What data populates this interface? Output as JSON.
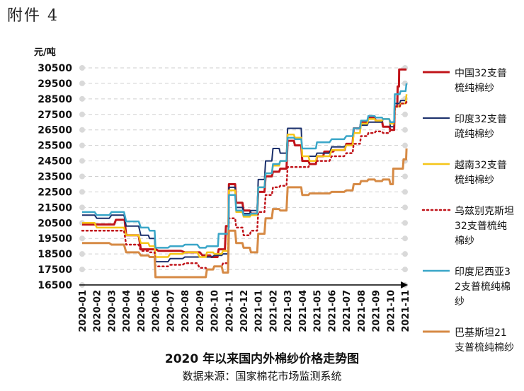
{
  "header_label": "附件 4",
  "chart_data": {
    "type": "line",
    "title": "2020 年以来国内外棉纱价格走势图",
    "source": "数据来源：国家棉花市场监测系统",
    "ylabel": "元/吨",
    "ylim": [
      16500,
      30500
    ],
    "yticks": [
      16500,
      17500,
      18500,
      19500,
      20500,
      21500,
      22500,
      23500,
      24500,
      25500,
      26500,
      27500,
      28500,
      29500,
      30500
    ],
    "grid": true,
    "legend": "right",
    "categories": [
      "2020-01",
      "2020-02",
      "2020-03",
      "2020-04",
      "2020-05",
      "2020-06",
      "2020-07",
      "2020-08",
      "2020-09",
      "2020-10",
      "2020-11",
      "2020-12",
      "2021-01",
      "2021-02",
      "2021-03",
      "2021-04",
      "2021-05",
      "2021-06",
      "2021-07",
      "2021-08",
      "2021-09",
      "2021-10",
      "2021-11"
    ],
    "series": [
      {
        "name": "中国32支普梳纯棉纱",
        "color": "#c0141a",
        "style": "solid",
        "width": 3,
        "points": [
          [
            0,
            20400
          ],
          [
            1.5,
            20400
          ],
          [
            2.3,
            20700
          ],
          [
            3,
            19700
          ],
          [
            4,
            18800
          ],
          [
            5.2,
            18700
          ],
          [
            7,
            18600
          ],
          [
            8.2,
            18400
          ],
          [
            8.8,
            18300
          ],
          [
            9.3,
            18800
          ],
          [
            9.8,
            20300
          ],
          [
            10,
            23000
          ],
          [
            10.5,
            21800
          ],
          [
            11,
            21300
          ],
          [
            11.5,
            21100
          ],
          [
            12,
            22500
          ],
          [
            12.5,
            23500
          ],
          [
            13,
            23800
          ],
          [
            13.5,
            24000
          ],
          [
            14,
            25800
          ],
          [
            14.5,
            25500
          ],
          [
            15,
            24500
          ],
          [
            15.5,
            24300
          ],
          [
            16,
            24800
          ],
          [
            16.5,
            25100
          ],
          [
            17.2,
            25200
          ],
          [
            18,
            25600
          ],
          [
            18.5,
            26600
          ],
          [
            19,
            27000
          ],
          [
            19.5,
            27300
          ],
          [
            20,
            27100
          ],
          [
            20.5,
            26700
          ],
          [
            21,
            26500
          ],
          [
            21.3,
            28000
          ],
          [
            21.5,
            29300
          ],
          [
            21.6,
            30400
          ],
          [
            22.1,
            30400
          ]
        ]
      },
      {
        "name": "印度32支普疏纯棉纱",
        "color": "#1a2f6b",
        "style": "solid",
        "width": 2,
        "points": [
          [
            0,
            21000
          ],
          [
            1,
            20800
          ],
          [
            2,
            21000
          ],
          [
            3,
            20300
          ],
          [
            4,
            19700
          ],
          [
            4.6,
            19500
          ],
          [
            5,
            18000
          ],
          [
            6,
            18200
          ],
          [
            7,
            18300
          ],
          [
            8,
            18300
          ],
          [
            9,
            18400
          ],
          [
            9.6,
            18500
          ],
          [
            10,
            22800
          ],
          [
            10.5,
            21500
          ],
          [
            11,
            21100
          ],
          [
            11.5,
            21300
          ],
          [
            12,
            23300
          ],
          [
            12.5,
            24500
          ],
          [
            13,
            25300
          ],
          [
            13.5,
            25000
          ],
          [
            14,
            26600
          ],
          [
            14.5,
            26600
          ],
          [
            15,
            24800
          ],
          [
            15.5,
            24800
          ],
          [
            16,
            25000
          ],
          [
            17,
            25400
          ],
          [
            18,
            25500
          ],
          [
            18.5,
            26300
          ],
          [
            19,
            26800
          ],
          [
            19.5,
            27000
          ],
          [
            20,
            27000
          ],
          [
            20.5,
            27200
          ],
          [
            21,
            26700
          ],
          [
            21.3,
            28200
          ],
          [
            21.7,
            28400
          ],
          [
            22.1,
            28700
          ]
        ]
      },
      {
        "name": "越南32支普梳纯棉纱",
        "color": "#f5c518",
        "style": "solid",
        "width": 2.5,
        "points": [
          [
            0,
            20500
          ],
          [
            1,
            20200
          ],
          [
            2,
            20200
          ],
          [
            3,
            19700
          ],
          [
            4,
            19200
          ],
          [
            4.6,
            19000
          ],
          [
            5,
            18300
          ],
          [
            6,
            18500
          ],
          [
            7,
            18600
          ],
          [
            8,
            18300
          ],
          [
            8.5,
            18600
          ],
          [
            9,
            18500
          ],
          [
            9.6,
            18700
          ],
          [
            10,
            22600
          ],
          [
            10.5,
            21200
          ],
          [
            11,
            20900
          ],
          [
            11.5,
            21000
          ],
          [
            12,
            22800
          ],
          [
            12.5,
            23700
          ],
          [
            13,
            24200
          ],
          [
            13.5,
            24500
          ],
          [
            14,
            26200
          ],
          [
            14.5,
            26000
          ],
          [
            15,
            24800
          ],
          [
            15.5,
            24500
          ],
          [
            16,
            24800
          ],
          [
            17,
            25200
          ],
          [
            18,
            25500
          ],
          [
            18.5,
            26300
          ],
          [
            19,
            26900
          ],
          [
            19.5,
            27200
          ],
          [
            20,
            27100
          ],
          [
            20.5,
            27200
          ],
          [
            21,
            26900
          ],
          [
            21.3,
            28000
          ],
          [
            21.7,
            28200
          ],
          [
            22.1,
            28800
          ]
        ]
      },
      {
        "name": "乌兹别克斯坦32支普梳纯棉纱",
        "color": "#c0141a",
        "style": "dotted",
        "width": 2.5,
        "points": [
          [
            0,
            20000
          ],
          [
            1,
            20000
          ],
          [
            2,
            20000
          ],
          [
            3,
            19100
          ],
          [
            4,
            18700
          ],
          [
            4.6,
            18600
          ],
          [
            5,
            17700
          ],
          [
            6,
            17800
          ],
          [
            7,
            17900
          ],
          [
            8,
            17600
          ],
          [
            8.5,
            17500
          ],
          [
            9,
            17700
          ],
          [
            9.6,
            17900
          ],
          [
            10,
            20800
          ],
          [
            10.5,
            20200
          ],
          [
            11,
            19700
          ],
          [
            11.5,
            20000
          ],
          [
            12,
            21200
          ],
          [
            12.5,
            22300
          ],
          [
            13,
            22800
          ],
          [
            13.5,
            22900
          ],
          [
            14,
            24100
          ],
          [
            14.5,
            24100
          ],
          [
            15,
            24100
          ],
          [
            15.5,
            24300
          ],
          [
            16,
            24500
          ],
          [
            17,
            24800
          ],
          [
            18,
            25000
          ],
          [
            18.5,
            25600
          ],
          [
            19,
            26100
          ],
          [
            19.5,
            26300
          ],
          [
            20,
            26400
          ],
          [
            20.5,
            26300
          ],
          [
            21,
            26500
          ],
          [
            21.3,
            28000
          ],
          [
            21.7,
            28200
          ],
          [
            22.1,
            28300
          ]
        ]
      },
      {
        "name": "印度尼西亚32支普梳纯棉纱",
        "color": "#3aa6c8",
        "style": "solid",
        "width": 2.5,
        "points": [
          [
            0,
            21200
          ],
          [
            1,
            21000
          ],
          [
            2,
            21200
          ],
          [
            3,
            20600
          ],
          [
            4,
            20200
          ],
          [
            4.6,
            20000
          ],
          [
            5,
            18900
          ],
          [
            6,
            19000
          ],
          [
            7,
            19100
          ],
          [
            8,
            18900
          ],
          [
            8.5,
            19000
          ],
          [
            9,
            19000
          ],
          [
            9.3,
            19800
          ],
          [
            9.8,
            19800
          ],
          [
            10,
            22300
          ],
          [
            10.5,
            21300
          ],
          [
            11,
            21000
          ],
          [
            11.5,
            21100
          ],
          [
            12,
            22800
          ],
          [
            12.5,
            23700
          ],
          [
            13,
            24300
          ],
          [
            13.5,
            24500
          ],
          [
            14,
            26000
          ],
          [
            14.5,
            25900
          ],
          [
            15,
            25300
          ],
          [
            15.5,
            25300
          ],
          [
            16,
            25700
          ],
          [
            17,
            25900
          ],
          [
            18,
            26100
          ],
          [
            18.5,
            26600
          ],
          [
            19,
            27100
          ],
          [
            19.5,
            27400
          ],
          [
            20,
            27300
          ],
          [
            20.5,
            27200
          ],
          [
            21,
            27000
          ],
          [
            21.3,
            28800
          ],
          [
            21.7,
            29000
          ],
          [
            22.1,
            29500
          ]
        ]
      },
      {
        "name": "巴基斯坦21支普梳纯棉纱",
        "color": "#d68a45",
        "style": "solid",
        "width": 3,
        "points": [
          [
            0,
            19200
          ],
          [
            1,
            19200
          ],
          [
            2,
            19100
          ],
          [
            3,
            18600
          ],
          [
            4,
            18400
          ],
          [
            4.6,
            18300
          ],
          [
            5,
            17000
          ],
          [
            6,
            17000
          ],
          [
            7,
            17000
          ],
          [
            8,
            17000
          ],
          [
            8.5,
            17500
          ],
          [
            9,
            17700
          ],
          [
            9.6,
            17300
          ],
          [
            10,
            20000
          ],
          [
            10.5,
            19200
          ],
          [
            11,
            18900
          ],
          [
            11.5,
            18600
          ],
          [
            12,
            19800
          ],
          [
            12.5,
            20800
          ],
          [
            13,
            21400
          ],
          [
            13.5,
            21300
          ],
          [
            14,
            22800
          ],
          [
            14.5,
            22800
          ],
          [
            15,
            22300
          ],
          [
            15.5,
            22400
          ],
          [
            16,
            22400
          ],
          [
            17,
            22500
          ],
          [
            18,
            22600
          ],
          [
            18.5,
            23000
          ],
          [
            19,
            23200
          ],
          [
            19.5,
            23300
          ],
          [
            20,
            23200
          ],
          [
            20.5,
            23300
          ],
          [
            21,
            23000
          ],
          [
            21.2,
            24000
          ],
          [
            21.6,
            24000
          ],
          [
            21.9,
            24600
          ],
          [
            22.1,
            25300
          ]
        ]
      }
    ]
  }
}
